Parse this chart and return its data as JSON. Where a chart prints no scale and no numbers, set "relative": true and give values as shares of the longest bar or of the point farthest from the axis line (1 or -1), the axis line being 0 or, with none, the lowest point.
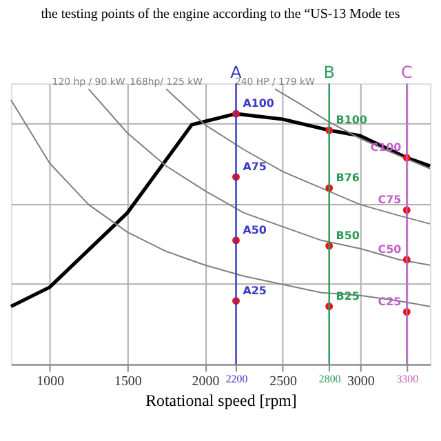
{
  "chart_data": {
    "type": "line",
    "title": "the testing points of the engine according to the “US-13 Mode tes",
    "xlabel": "Rotational speed [rpm]",
    "relative": true,
    "xlim": [
      750,
      3450
    ],
    "xticks": [
      1000,
      1500,
      2000,
      2200,
      2500,
      2800,
      3000,
      3300
    ],
    "grid": true,
    "legend": false,
    "tick_labels": "x",
    "series": [
      {
        "color": "#000000",
        "x": [
          750,
          1000,
          1500,
          1915,
          2200,
          2500,
          2800,
          3000,
          3300,
          3450
        ],
        "values": [
          0.21,
          0.28,
          0.55,
          0.87,
          0.91,
          0.89,
          0.85,
          0.83,
          0.75,
          0.72
        ]
      },
      {
        "name": "240 HP / 179 kW",
        "color": "#808080",
        "x": [
          2450,
          2600,
          2800,
          3000,
          3200,
          3450
        ],
        "values": [
          1.0,
          0.95,
          0.88,
          0.82,
          0.77,
          0.71
        ]
      },
      {
        "name": "168hp/ 125 kW",
        "color": "#808080",
        "x": [
          1750,
          2000,
          2250,
          2500,
          2750,
          3000,
          3250,
          3450
        ],
        "values": [
          1.0,
          0.87,
          0.78,
          0.7,
          0.64,
          0.58,
          0.54,
          0.51
        ]
      },
      {
        "name": "120 hp / 90 kW",
        "color": "#808080",
        "x": [
          1250,
          1500,
          1750,
          2000,
          2250,
          2500,
          2750,
          3000,
          3250,
          3450
        ],
        "values": [
          1.0,
          0.84,
          0.72,
          0.63,
          0.55,
          0.5,
          0.45,
          0.42,
          0.38,
          0.36
        ]
      },
      {
        "color": "#808080",
        "x": [
          750,
          1000,
          1250,
          1500,
          1750,
          2000,
          2250,
          2500,
          2750,
          3000,
          3250,
          3450
        ],
        "values": [
          0.96,
          0.73,
          0.58,
          0.48,
          0.41,
          0.36,
          0.32,
          0.29,
          0.26,
          0.25,
          0.23,
          0.21
        ]
      },
      {
        "type": "scatter",
        "color": "#e8141a",
        "x": [
          2200,
          2200,
          2200,
          2200,
          2800,
          2800,
          2800,
          2800,
          3300,
          3300,
          3300,
          3300
        ],
        "values": [
          0.91,
          0.68,
          0.45,
          0.23,
          0.85,
          0.64,
          0.43,
          0.21,
          0.75,
          0.56,
          0.38,
          0.19
        ]
      }
    ],
    "ref_lines": [
      {
        "axis": "x",
        "value": 2200,
        "label": "A",
        "color": "#3b3bc8"
      },
      {
        "axis": "x",
        "value": 2800,
        "label": "B",
        "color": "#2e9a5a"
      },
      {
        "axis": "x",
        "value": 3300,
        "label": "C",
        "color": "#c060c8"
      }
    ],
    "annotations": [
      {
        "text": "A100",
        "x": 2200,
        "y": 0.91
      },
      {
        "text": "A75",
        "x": 2200,
        "y": 0.68
      },
      {
        "text": "A50",
        "x": 2200,
        "y": 0.45
      },
      {
        "text": "A25",
        "x": 2200,
        "y": 0.23
      },
      {
        "text": "B100",
        "x": 2800,
        "y": 0.85
      },
      {
        "text": "B76",
        "x": 2800,
        "y": 0.64
      },
      {
        "text": "B50",
        "x": 2800,
        "y": 0.43
      },
      {
        "text": "B25",
        "x": 2800,
        "y": 0.21
      },
      {
        "text": "C100",
        "x": 3300,
        "y": 0.75
      },
      {
        "text": "C75",
        "x": 3300,
        "y": 0.56
      },
      {
        "text": "C50",
        "x": 3300,
        "y": 0.38
      },
      {
        "text": "C25",
        "x": 3300,
        "y": 0.19
      }
    ]
  }
}
